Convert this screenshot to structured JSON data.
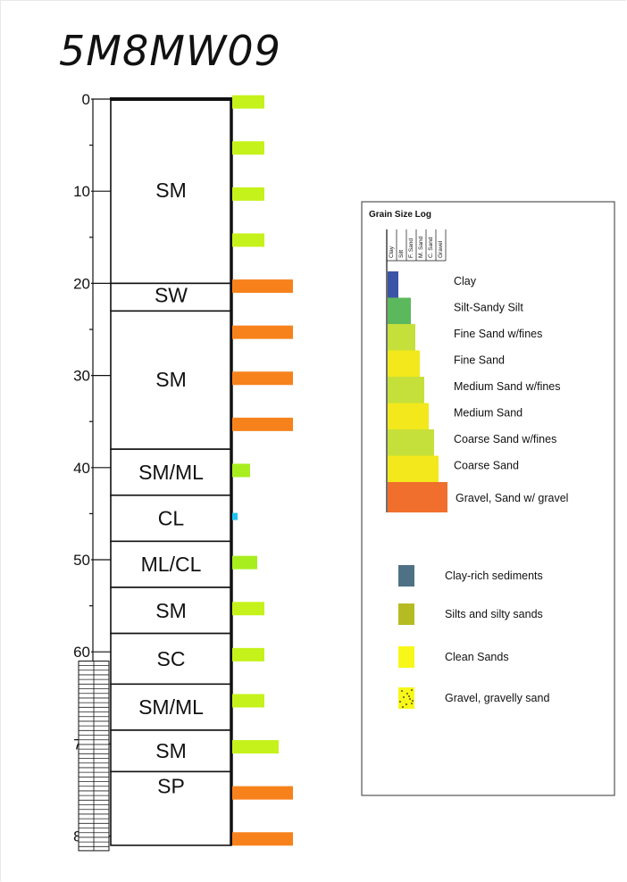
{
  "title": "5M8MW09",
  "depth_axis": {
    "ticks": [
      0,
      10,
      20,
      30,
      40,
      50,
      60,
      70,
      80
    ],
    "max": 81
  },
  "lithology": [
    {
      "top": 0,
      "bottom": 20,
      "label": "SM"
    },
    {
      "top": 20,
      "bottom": 23,
      "label": "SW"
    },
    {
      "top": 23,
      "bottom": 38,
      "label": "SM"
    },
    {
      "top": 38,
      "bottom": 43,
      "label": "SM/ML"
    },
    {
      "top": 43,
      "bottom": 48,
      "label": "CL"
    },
    {
      "top": 48,
      "bottom": 53,
      "label": "ML/CL"
    },
    {
      "top": 53,
      "bottom": 58,
      "label": "SM"
    },
    {
      "top": 58,
      "bottom": 63.5,
      "label": "SC"
    },
    {
      "top": 63.5,
      "bottom": 68.5,
      "label": "SM/ML"
    },
    {
      "top": 68.5,
      "bottom": 73,
      "label": "SM"
    },
    {
      "top": 73,
      "bottom": 81,
      "label": "SP"
    }
  ],
  "screen_interval": {
    "top": 61,
    "bottom": 81
  },
  "grain_samples": [
    {
      "depth": 0.5,
      "class": "Fine Sand w/fines"
    },
    {
      "depth": 5.5,
      "class": "Fine Sand w/fines"
    },
    {
      "depth": 10.5,
      "class": "Fine Sand w/fines"
    },
    {
      "depth": 15.5,
      "class": "Fine Sand w/fines"
    },
    {
      "depth": 20.5,
      "class": "Gravel, Sand w/ gravel"
    },
    {
      "depth": 25.5,
      "class": "Gravel, Sand w/ gravel"
    },
    {
      "depth": 30.5,
      "class": "Gravel, Sand w/ gravel"
    },
    {
      "depth": 35.5,
      "class": "Gravel, Sand w/ gravel"
    },
    {
      "depth": 40.5,
      "class": "Silt-Sandy Silt"
    },
    {
      "depth": 45.5,
      "class": "Clay"
    },
    {
      "depth": 50.5,
      "class": "Silt-Sandy Silt"
    },
    {
      "depth": 55.5,
      "class": "Fine Sand w/fines"
    },
    {
      "depth": 60.5,
      "class": "Fine Sand w/fines"
    },
    {
      "depth": 65.5,
      "class": "Fine Sand w/fines"
    },
    {
      "depth": 70.5,
      "class": "Medium Sand w/fines"
    },
    {
      "depth": 75.5,
      "class": "Gravel, Sand w/ gravel"
    },
    {
      "depth": 80.5,
      "class": "Gravel, Sand w/ gravel"
    }
  ],
  "legend": {
    "title": "Grain Size Log",
    "column_headers": [
      "Clay",
      "Silt",
      "F. Sand",
      "M. Sand",
      "C. Sand",
      "Gravel"
    ],
    "grain_classes": [
      {
        "label": "Clay",
        "color": "#3b54a8",
        "rank": 1
      },
      {
        "label": "Silt-Sandy Silt",
        "color": "#5cb85c",
        "rank": 2
      },
      {
        "label": "Fine Sand w/fines",
        "color": "#c5e03a",
        "rank": 3
      },
      {
        "label": "Fine Sand",
        "color": "#f2e81c",
        "rank": 3
      },
      {
        "label": "Medium Sand w/fines",
        "color": "#c5e03a",
        "rank": 4
      },
      {
        "label": "Medium Sand",
        "color": "#f2e81c",
        "rank": 4
      },
      {
        "label": "Coarse Sand w/fines",
        "color": "#c5e03a",
        "rank": 5
      },
      {
        "label": "Coarse Sand",
        "color": "#f2e81c",
        "rank": 5
      },
      {
        "label": "Gravel, Sand w/ gravel",
        "color": "#f06f2c",
        "rank": 6
      }
    ],
    "sediment_types": [
      {
        "label": "Clay-rich sediments",
        "color": "#4f7185",
        "pattern": "solid"
      },
      {
        "label": "Silts and silty sands",
        "color": "#b5bb22",
        "pattern": "solid"
      },
      {
        "label": "Clean Sands",
        "color": "#f7f719",
        "pattern": "solid"
      },
      {
        "label": "Gravel, gravelly sand",
        "color": "#f7f719",
        "pattern": "dots"
      }
    ]
  },
  "colors": {
    "fine_sand_fines": "#c5f21a",
    "gravel": "#f7821c",
    "clay": "#1ec3f0",
    "silt": "#a8ee1e"
  }
}
